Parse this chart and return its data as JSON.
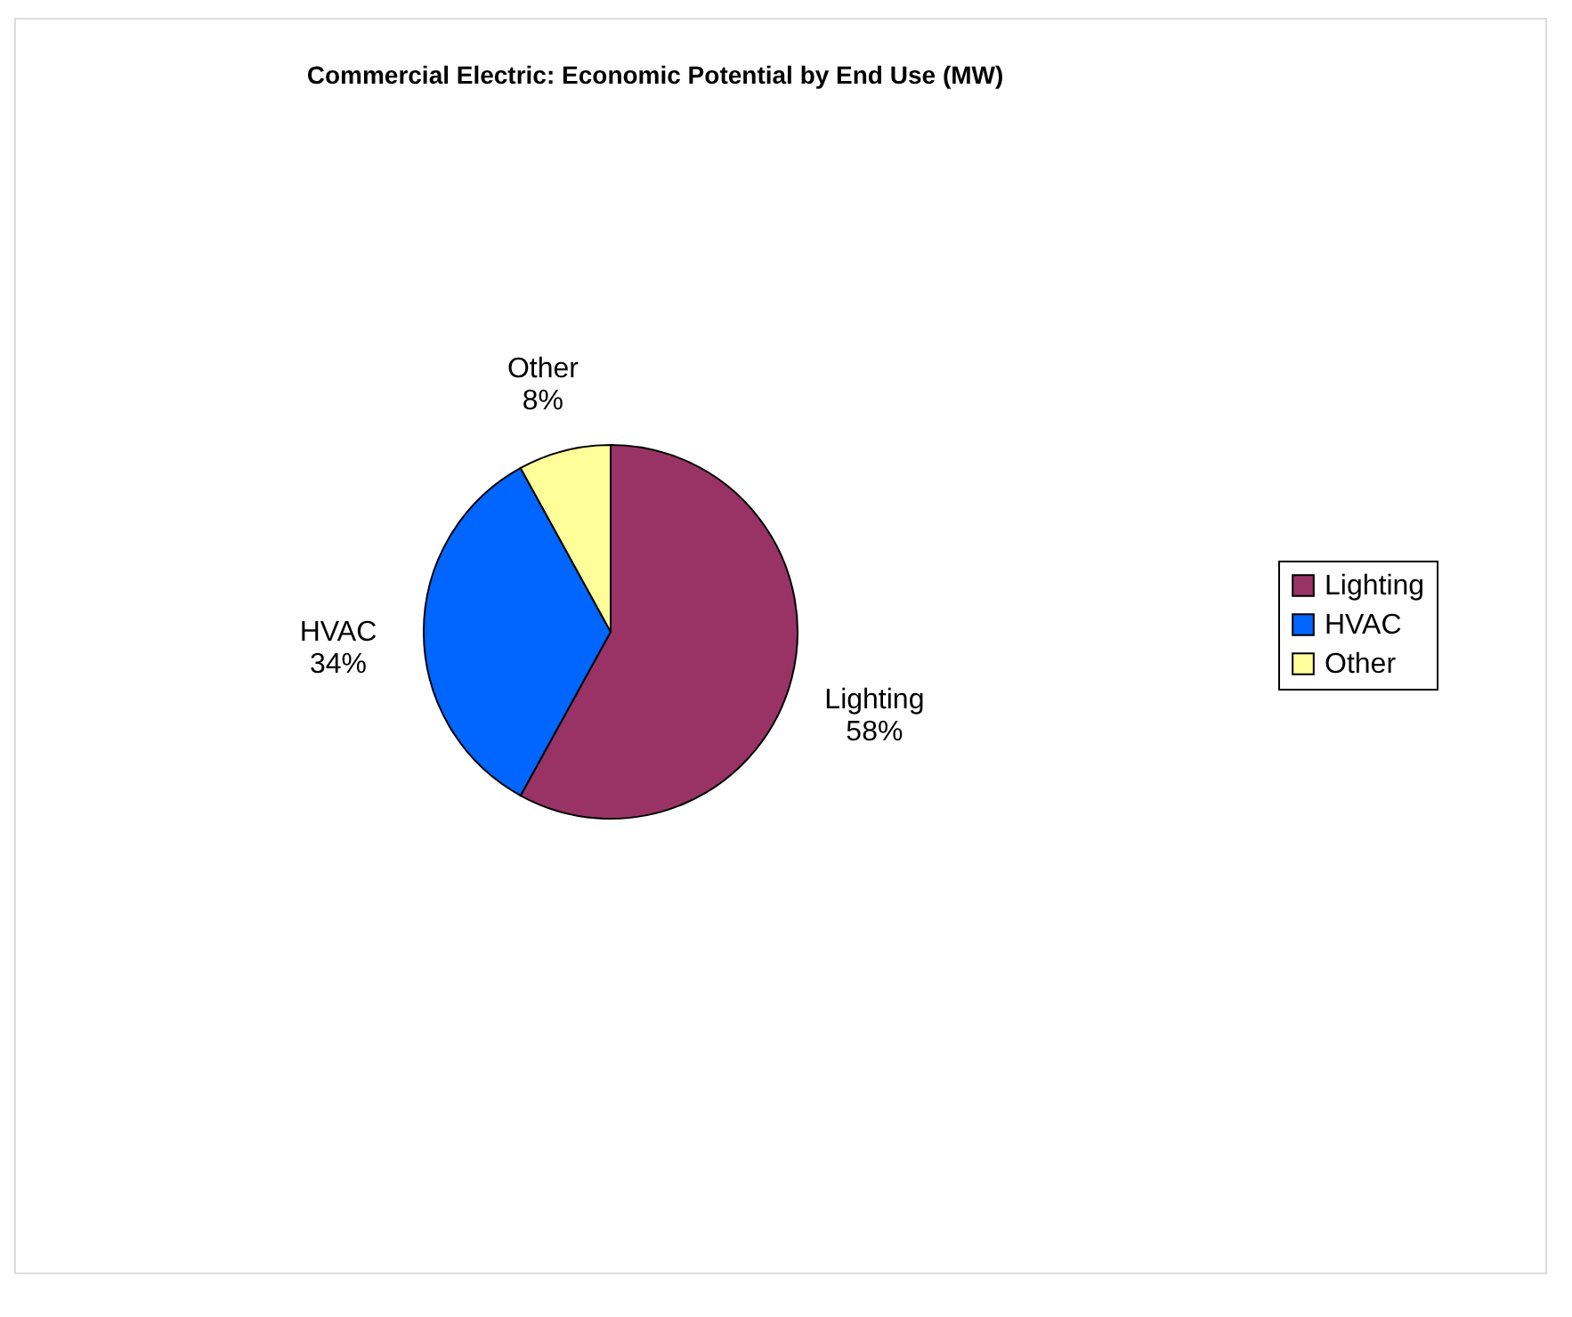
{
  "chart_data": {
    "type": "pie",
    "title": "Commercial Electric: Economic Potential by End Use (MW)",
    "categories": [
      "Lighting",
      "HVAC",
      "Other"
    ],
    "values": [
      58,
      34,
      8
    ],
    "value_labels": [
      "58%",
      "34%",
      "8%"
    ],
    "colors": [
      "#993366",
      "#0066ff",
      "#ffff99"
    ],
    "legend": "right"
  }
}
